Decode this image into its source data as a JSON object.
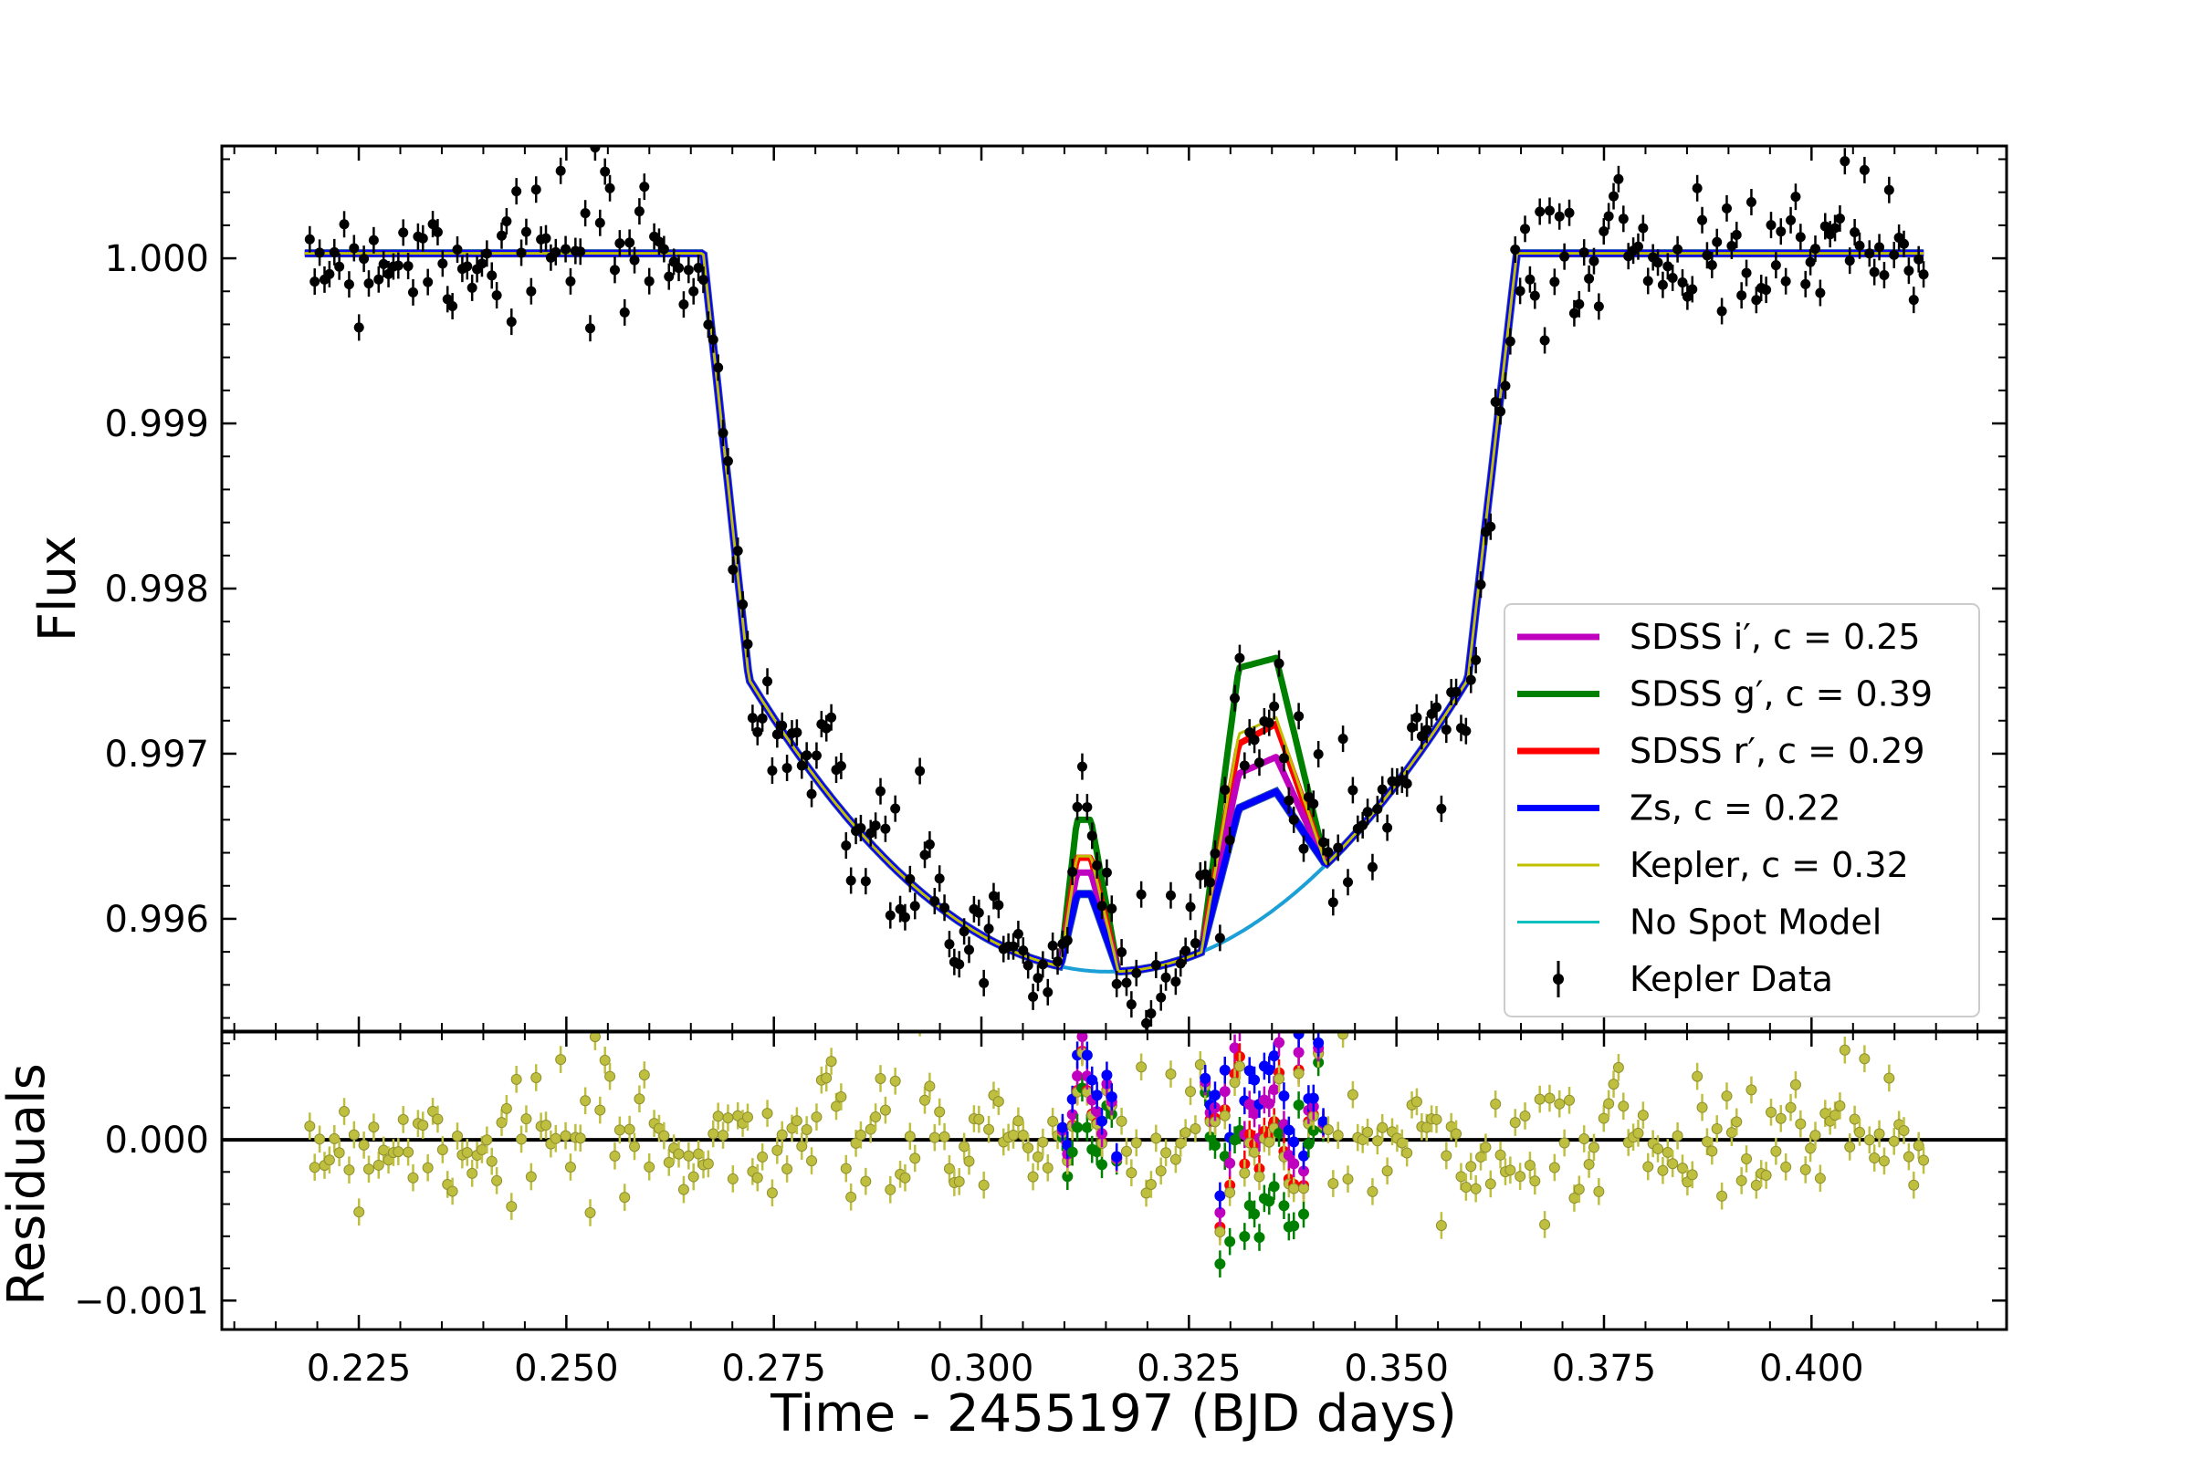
{
  "chart_data": [
    {
      "type": "line",
      "panel": "light curve",
      "xlabel": "",
      "ylabel": "Flux",
      "xlim": [
        0.2085,
        0.4235
      ],
      "ylim": [
        0.99532,
        1.00068
      ],
      "x_ticks": [
        0.225,
        0.25,
        0.275,
        0.3,
        0.325,
        0.35,
        0.375,
        0.4
      ],
      "y_ticks": [
        0.996,
        0.997,
        0.998,
        0.999,
        1.0
      ],
      "y_tick_labels": [
        "0.996",
        "0.997",
        "0.998",
        "0.999",
        "1.000"
      ],
      "legend_position": "right",
      "legend": [
        {
          "label": "SDSS i′, c = 0.25",
          "color": "#bf00bf",
          "style": "thick-line"
        },
        {
          "label": "SDSS g′, c = 0.39",
          "color": "#008000",
          "style": "thick-line"
        },
        {
          "label": "SDSS r′, c = 0.29",
          "color": "#ff0000",
          "style": "thick-line"
        },
        {
          "label": "Zs, c = 0.22",
          "color": "#0000ff",
          "style": "thick-line"
        },
        {
          "label": "Kepler, c = 0.32",
          "color": "#bfbf00",
          "style": "thin-line"
        },
        {
          "label": "No Spot Model",
          "color": "#00bfbf",
          "style": "thin-line"
        },
        {
          "label": "Kepler Data",
          "color": "#000000",
          "style": "errorbar"
        }
      ],
      "model": {
        "baseline": 1.00003,
        "ingress_start": 0.2665,
        "contact_2": 0.272,
        "contact_3": 0.3586,
        "egress_end": 0.3645,
        "depth_at_contact": 0.99745,
        "bottom": 0.99568,
        "center": 0.3153
      },
      "spots": [
        {
          "name": "spot-1",
          "start": 0.3095,
          "peak_start": 0.3115,
          "peak_end": 0.3132,
          "end": 0.3165,
          "heights": {
            "SDSS i′": 0.99628,
            "SDSS g′": 0.9966,
            "SDSS r′": 0.99637,
            "Zs": 0.99615,
            "Kepler": 0.99638
          }
        },
        {
          "name": "spot-2",
          "start": 0.3265,
          "peak_start": 0.331,
          "peak_end": 0.3355,
          "end": 0.3415,
          "heights": {
            "SDSS i′": 0.99688,
            "SDSS g′": 0.99752,
            "SDSS r′": 0.99706,
            "Zs": 0.99667,
            "Kepler": 0.99712
          },
          "peak_late": {
            "SDSS i′": 0.99698,
            "SDSS g′": 0.99758,
            "SDSS r′": 0.99718,
            "Zs": 0.99677,
            "Kepler": 0.99722
          }
        }
      ],
      "data_points": {
        "count": 330,
        "x_range": [
          0.2185,
          0.4135
        ],
        "error": 8e-05,
        "scatter": 0.00022,
        "seed": 7
      }
    },
    {
      "type": "scatter",
      "panel": "residuals",
      "xlabel": "Time - 2455197 (BJD days)",
      "ylabel": "Residuals",
      "xlim": [
        0.2085,
        0.4235
      ],
      "ylim": [
        -0.00118,
        0.00067
      ],
      "x_ticks": [
        0.225,
        0.25,
        0.275,
        0.3,
        0.325,
        0.35,
        0.375,
        0.4
      ],
      "x_tick_labels": [
        "0.225",
        "0.250",
        "0.275",
        "0.300",
        "0.325",
        "0.350",
        "0.375",
        "0.400"
      ],
      "y_ticks": [
        -0.001,
        0.0
      ],
      "y_tick_labels": [
        "−0.001",
        "0.000"
      ],
      "zero_line": true,
      "residual_scatter": 0.00022,
      "residual_error": 5e-05,
      "series": [
        {
          "name": "SDSS i′",
          "color": "#bf00bf"
        },
        {
          "name": "SDSS g′",
          "color": "#008000"
        },
        {
          "name": "SDSS r′",
          "color": "#ff0000"
        },
        {
          "name": "Zs",
          "color": "#0000ff"
        },
        {
          "name": "Kepler",
          "color": "#bfbf3f"
        }
      ]
    }
  ]
}
